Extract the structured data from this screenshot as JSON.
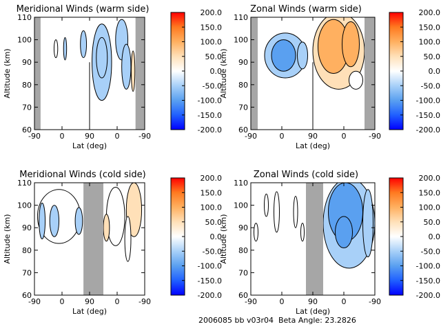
{
  "footer": {
    "run_id": "2006085 bb v03r04",
    "beta_label": "Beta Angle:",
    "beta_value": "23.2826"
  },
  "colors": {
    "shading": "#a6a6a6",
    "frame": "#000000",
    "scale": [
      "#0000ff",
      "#2060ff",
      "#5aa0f0",
      "#a8d0f8",
      "#ffffff",
      "#ffe0b8",
      "#ffb060",
      "#ff7a20",
      "#ff0000"
    ]
  },
  "chart_data": [
    {
      "type": "heatmap",
      "title": "Meridional Winds (warm side)",
      "xlabel": "Lat (deg)",
      "ylabel": "Altitude (km)",
      "xticks": [
        "-90",
        "0",
        "90",
        "0",
        "-90"
      ],
      "xlim": [
        0,
        360
      ],
      "yticks": [
        60,
        70,
        80,
        90,
        100,
        110
      ],
      "ylim": [
        60,
        110
      ],
      "colorbar": {
        "ticks": [
          "200.0",
          "150.0",
          "100.0",
          "50.0",
          "0.0",
          "-50.0",
          "-100.0",
          "-150.0",
          "-200.0"
        ],
        "range": [
          -200,
          200
        ]
      },
      "no_data_bands": [
        [
          0,
          20
        ],
        [
          330,
          360
        ]
      ],
      "divider_x": 180,
      "blobs": [
        {
          "cx": 70,
          "cy": 96,
          "rx": 6,
          "ry": 4,
          "value": 20
        },
        {
          "cx": 100,
          "cy": 96,
          "rx": 5,
          "ry": 5,
          "value": -30
        },
        {
          "cx": 160,
          "cy": 98,
          "rx": 10,
          "ry": 6,
          "value": -35
        },
        {
          "cx": 220,
          "cy": 90,
          "rx": 32,
          "ry": 17,
          "value": -40
        },
        {
          "cx": 220,
          "cy": 92,
          "rx": 18,
          "ry": 9,
          "value": -75
        },
        {
          "cx": 285,
          "cy": 100,
          "rx": 20,
          "ry": 9,
          "value": -60
        },
        {
          "cx": 300,
          "cy": 88,
          "rx": 15,
          "ry": 10,
          "value": -35
        },
        {
          "cx": 322,
          "cy": 86,
          "rx": 6,
          "ry": 9,
          "value": 25
        }
      ]
    },
    {
      "type": "heatmap",
      "title": "Zonal Winds (warm side)",
      "xlabel": "Lat (deg)",
      "ylabel": "Altitude (km)",
      "xticks": [
        "-90",
        "0",
        "90",
        "0",
        "-90"
      ],
      "xlim": [
        0,
        360
      ],
      "yticks": [
        60,
        70,
        80,
        90,
        100,
        110
      ],
      "ylim": [
        60,
        110
      ],
      "colorbar": {
        "ticks": [
          "200.0",
          "150.0",
          "100.0",
          "50.0",
          "0.0",
          "-50.0",
          "-100.0",
          "-150.0",
          "-200.0"
        ],
        "range": [
          -200,
          200
        ]
      },
      "no_data_bands": [
        [
          0,
          20
        ],
        [
          330,
          360
        ]
      ],
      "divider_x": 180,
      "blobs": [
        {
          "cx": 100,
          "cy": 93,
          "rx": 60,
          "ry": 10,
          "value": -40
        },
        {
          "cx": 95,
          "cy": 93,
          "rx": 35,
          "ry": 7,
          "value": -90
        },
        {
          "cx": 150,
          "cy": 93,
          "rx": 15,
          "ry": 6,
          "value": -70
        },
        {
          "cx": 255,
          "cy": 95,
          "rx": 75,
          "ry": 17,
          "value": 50
        },
        {
          "cx": 240,
          "cy": 97,
          "rx": 45,
          "ry": 12,
          "value": 85
        },
        {
          "cx": 290,
          "cy": 98,
          "rx": 25,
          "ry": 10,
          "value": 80
        },
        {
          "cx": 305,
          "cy": 82,
          "rx": 20,
          "ry": 4,
          "value": 20
        }
      ]
    },
    {
      "type": "heatmap",
      "title": "Meridional Winds (cold side)",
      "xlabel": "Lat (deg)",
      "ylabel": "Altitude (km)",
      "xticks": [
        "-90",
        "0",
        "90",
        "0",
        "-90"
      ],
      "xlim": [
        0,
        360
      ],
      "yticks": [
        60,
        70,
        80,
        90,
        100,
        110
      ],
      "ylim": [
        60,
        110
      ],
      "colorbar": {
        "ticks": [
          "200.0",
          "150.0",
          "100.0",
          "50.0",
          "0.0",
          "-50.0",
          "-100.0",
          "-150.0",
          "-200.0"
        ],
        "range": [
          -200,
          200
        ]
      },
      "no_data_bands": [
        [
          160,
          225
        ]
      ],
      "divider_x": null,
      "blobs": [
        {
          "cx": 80,
          "cy": 95,
          "rx": 70,
          "ry": 12,
          "value": -25
        },
        {
          "cx": 65,
          "cy": 93,
          "rx": 15,
          "ry": 7,
          "value": -75
        },
        {
          "cx": 145,
          "cy": 93,
          "rx": 12,
          "ry": 6,
          "value": -75
        },
        {
          "cx": 25,
          "cy": 93,
          "rx": 10,
          "ry": 8,
          "value": -40
        },
        {
          "cx": 265,
          "cy": 95,
          "rx": 30,
          "ry": 13,
          "value": 20
        },
        {
          "cx": 325,
          "cy": 98,
          "rx": 25,
          "ry": 12,
          "value": 45
        },
        {
          "cx": 305,
          "cy": 85,
          "rx": 10,
          "ry": 10,
          "value": 20
        },
        {
          "cx": 235,
          "cy": 90,
          "rx": 10,
          "ry": 6,
          "value": 25
        }
      ]
    },
    {
      "type": "heatmap",
      "title": "Zonal Winds (cold side)",
      "xlabel": "Lat (deg)",
      "ylabel": "Altitude (km)",
      "xticks": [
        "-90",
        "0",
        "90",
        "0",
        "-90"
      ],
      "xlim": [
        0,
        360
      ],
      "yticks": [
        60,
        70,
        80,
        90,
        100,
        110
      ],
      "ylim": [
        60,
        110
      ],
      "colorbar": {
        "ticks": [
          "200.0",
          "150.0",
          "100.0",
          "50.0",
          "0.0",
          "-50.0",
          "-100.0",
          "-150.0",
          "-200.0"
        ],
        "range": [
          -200,
          200
        ]
      },
      "no_data_bands": [
        [
          160,
          210
        ]
      ],
      "divider_x": null,
      "blobs": [
        {
          "cx": 285,
          "cy": 92,
          "rx": 75,
          "ry": 20,
          "value": -45
        },
        {
          "cx": 275,
          "cy": 97,
          "rx": 50,
          "ry": 13,
          "value": -100
        },
        {
          "cx": 270,
          "cy": 88,
          "rx": 25,
          "ry": 7,
          "value": -110
        },
        {
          "cx": 340,
          "cy": 92,
          "rx": 15,
          "ry": 15,
          "value": -40
        },
        {
          "cx": 45,
          "cy": 100,
          "rx": 6,
          "ry": 5,
          "value": 15
        },
        {
          "cx": 75,
          "cy": 97,
          "rx": 8,
          "ry": 9,
          "value": -20
        },
        {
          "cx": 15,
          "cy": 88,
          "rx": 6,
          "ry": 4,
          "value": -20
        },
        {
          "cx": 130,
          "cy": 97,
          "rx": 6,
          "ry": 7,
          "value": -25
        },
        {
          "cx": 150,
          "cy": 88,
          "rx": 5,
          "ry": 4,
          "value": -20
        }
      ]
    }
  ]
}
